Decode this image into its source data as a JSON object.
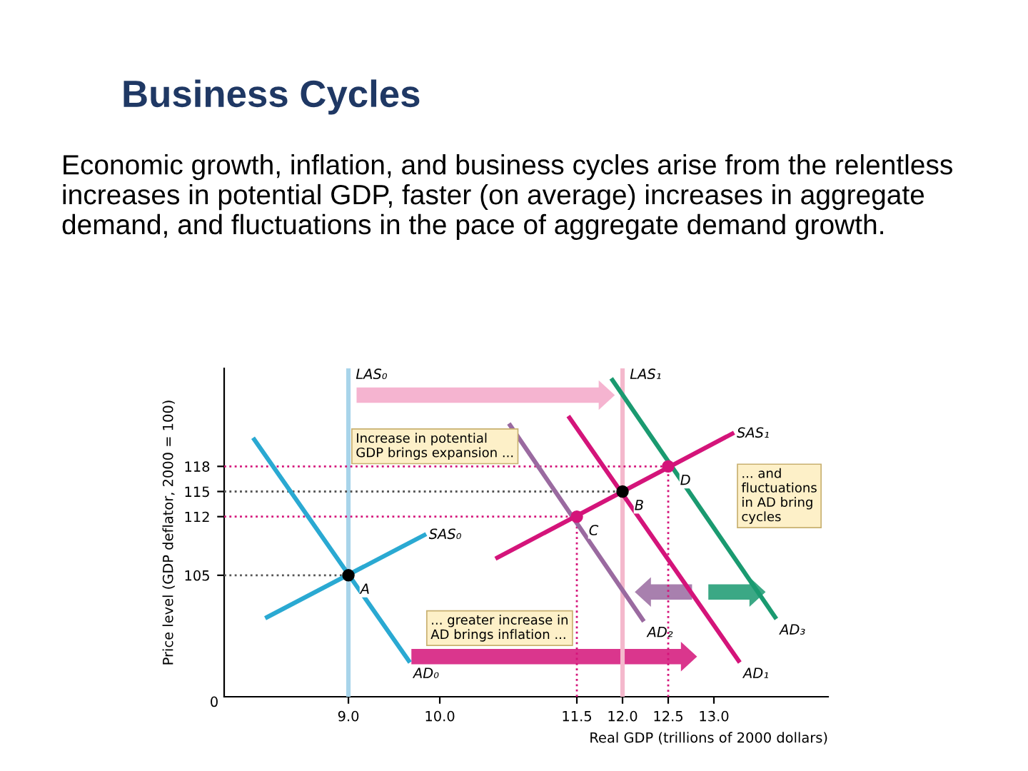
{
  "chart_data": {
    "type": "line",
    "title": "Business Cycles",
    "subtitle": "Economic growth, inflation, and business cycles arise from the relentless increases in potential GDP, faster (on average) increases in aggregate demand, and fluctuations in the pace of aggregate demand growth.",
    "xlabel": "Real GDP (trillions of 2000 dollars)",
    "ylabel": "Price level (GDP deflator, 2000 = 100)",
    "xlim": [
      7.64,
      14.25
    ],
    "ylim": [
      90.5,
      129.7
    ],
    "xticks": [
      {
        "value": 9,
        "label": "9.0"
      },
      {
        "value": 10,
        "label": "10.0"
      },
      11.5,
      {
        "value": 12,
        "label": "12.0"
      },
      12.5,
      {
        "value": 13,
        "label": "13.0"
      }
    ],
    "yticks": [
      105,
      112,
      115,
      118
    ],
    "grid": false,
    "series": [
      {
        "name": "LAS₀",
        "color": "#a8d4ea",
        "x": [
          9.0,
          9.0
        ],
        "values": [
          90.5,
          129.7
        ]
      },
      {
        "name": "LAS₁",
        "color": "#f4b8cc",
        "x": [
          12.0,
          12.0
        ],
        "values": [
          90.5,
          129.7
        ]
      },
      {
        "color": "#555555",
        "line_style": "dotted",
        "x": [
          7.64,
          9.0
        ],
        "values": [
          105,
          105
        ]
      },
      {
        "color": "#555555",
        "line_style": "dotted",
        "x": [
          7.64,
          12.0
        ],
        "values": [
          115,
          115
        ]
      },
      {
        "color": "#d4147a",
        "line_style": "dotted",
        "x": [
          7.64,
          11.5,
          11.5
        ],
        "values": [
          112,
          112,
          90.5
        ]
      },
      {
        "color": "#d4147a",
        "line_style": "dotted",
        "x": [
          7.64,
          12.5,
          12.5
        ],
        "values": [
          118,
          118,
          90.5
        ]
      },
      {
        "name": "AD₀",
        "color": "#2aa9d2",
        "x": [
          7.97,
          9.66
        ],
        "values": [
          121.2,
          94.8
        ]
      },
      {
        "name": "SAS₀",
        "color": "#2aa9d2",
        "x": [
          8.11,
          9.83
        ],
        "values": [
          100.0,
          109.8
        ]
      },
      {
        "name": "AD₂",
        "color": "#9a6aa0",
        "x": [
          10.77,
          12.22
        ],
        "values": [
          122.9,
          99.7
        ]
      },
      {
        "name": "AD₁",
        "color": "#d4147a",
        "x": [
          11.42,
          13.27
        ],
        "values": [
          123.8,
          94.8
        ]
      },
      {
        "name": "SAS₁",
        "color": "#d4147a",
        "x": [
          10.63,
          13.2
        ],
        "values": [
          107.1,
          121.9
        ]
      },
      {
        "name": "AD₃",
        "color": "#1a9a70",
        "x": [
          11.89,
          13.67
        ],
        "values": [
          128.3,
          100.0
        ]
      },
      {
        "type": "scatter",
        "marker": "circle",
        "colors": [
          "#000000",
          "#000000",
          "#d4147a",
          "#d4147a"
        ],
        "x": [
          9.0,
          12.0,
          11.5,
          12.5
        ],
        "values": [
          105,
          115,
          112,
          118
        ]
      }
    ],
    "annotations": [
      {
        "text": "A",
        "x": 9.0,
        "y": 105
      },
      {
        "text": "B",
        "x": 12.0,
        "y": 115
      },
      {
        "text": "C",
        "x": 11.5,
        "y": 112
      },
      {
        "text": "D",
        "x": 12.5,
        "y": 118
      },
      "Increase in potential\nGDP brings expansion ...",
      "... greater increase in\nAD brings inflation ...",
      "... and\nfluctuations\nin AD bring\ncycles",
      "0"
    ]
  }
}
